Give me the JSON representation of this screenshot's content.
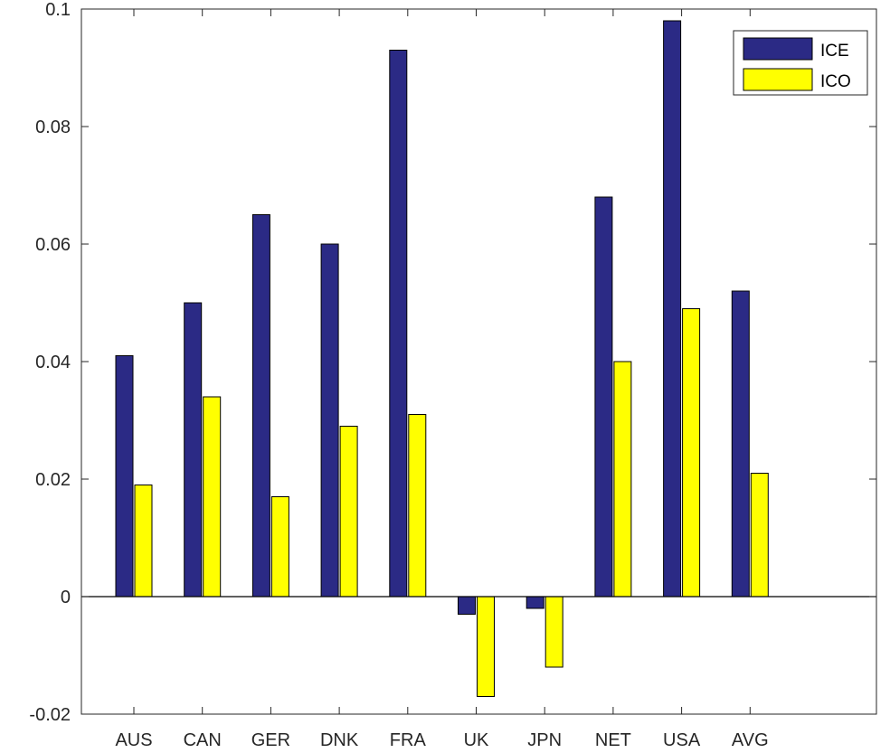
{
  "chart_data": {
    "type": "bar",
    "title": "",
    "xlabel": "",
    "ylabel": "",
    "categories": [
      "AUS",
      "CAN",
      "GER",
      "DNK",
      "FRA",
      "UK",
      "JPN",
      "NET",
      "USA",
      "AVG"
    ],
    "series": [
      {
        "name": "ICE",
        "color": "#2b2a85",
        "values": [
          0.041,
          0.05,
          0.065,
          0.06,
          0.093,
          -0.003,
          -0.002,
          0.068,
          0.098,
          0.052
        ]
      },
      {
        "name": "ICO",
        "color": "#ffff00",
        "values": [
          0.019,
          0.034,
          0.017,
          0.029,
          0.031,
          -0.017,
          -0.012,
          0.04,
          0.049,
          0.021
        ]
      }
    ],
    "ylim": [
      -0.02,
      0.1
    ],
    "yticks": [
      "-0.02",
      "0",
      "0.02",
      "0.04",
      "0.06",
      "0.08",
      "0.1"
    ],
    "grid": false,
    "legend": "top-right",
    "zero_line": true
  }
}
